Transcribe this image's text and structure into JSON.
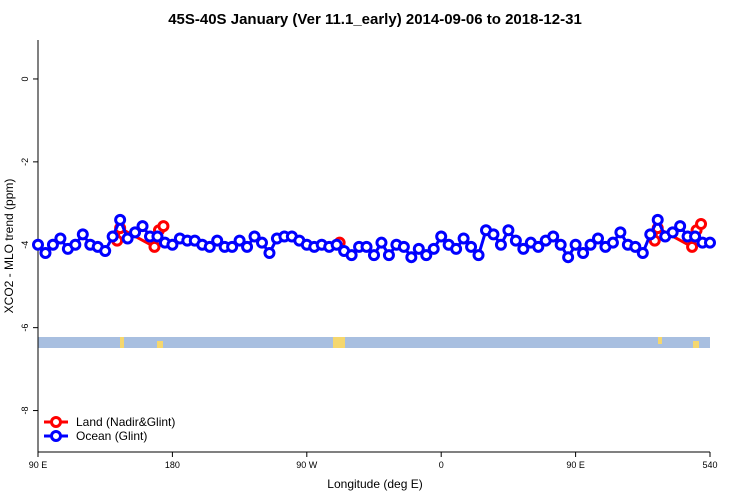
{
  "chart_data": {
    "type": "line",
    "title": "45S-40S January (Ver 11.1_early)   2014-09-06 to 2018-12-31",
    "x_label": "Longitude (deg E)",
    "y_label": "XCO2 - MLO trend (ppm)",
    "xlim": [
      90,
      540
    ],
    "xticks": [
      {
        "value": 90,
        "label": "90 E"
      },
      180,
      {
        "value": 270,
        "label": "90 W"
      },
      {
        "value": 360,
        "label": "0"
      },
      {
        "value": 450,
        "label": "90 E"
      },
      540
    ],
    "ylim": [
      -9.0,
      0.94
    ],
    "yticks": [
      0,
      -2,
      -4,
      -6,
      -8
    ],
    "legend": "bottom-left",
    "series": [
      {
        "name": "Land (Nadir&Glint)",
        "color": "#ff0000",
        "x": [
          143,
          145,
          168,
          171,
          174,
          null,
          292,
          null,
          503,
          505,
          528,
          531,
          534
        ],
        "values": [
          -3.9,
          -3.6,
          -4.05,
          -3.65,
          -3.55,
          null,
          -3.95,
          null,
          -3.9,
          -3.6,
          -4.05,
          -3.65,
          -3.5
        ]
      },
      {
        "name": "Ocean (Glint)",
        "color": "#0000ff",
        "x": [
          90,
          95,
          100,
          105,
          110,
          115,
          120,
          125,
          130,
          135,
          140,
          145,
          150,
          155,
          160,
          165,
          170,
          175,
          180,
          185,
          190,
          195,
          200,
          205,
          210,
          215,
          220,
          225,
          230,
          235,
          240,
          245,
          250,
          255,
          260,
          265,
          270,
          275,
          280,
          285,
          290,
          295,
          300,
          305,
          310,
          315,
          320,
          325,
          330,
          335,
          340,
          345,
          350,
          355,
          360,
          365,
          370,
          375,
          380,
          385,
          390,
          395,
          400,
          405,
          410,
          415,
          420,
          425,
          430,
          435,
          440,
          445,
          450,
          455,
          460,
          465,
          470,
          475,
          480,
          485,
          490,
          495,
          500,
          505,
          510,
          515,
          520,
          525,
          530,
          535,
          540
        ],
        "values": [
          -4.0,
          -4.2,
          -4.0,
          -3.85,
          -4.1,
          -4.0,
          -3.75,
          -4.0,
          -4.05,
          -4.15,
          -3.8,
          -3.4,
          -3.85,
          -3.7,
          -3.55,
          -3.8,
          -3.8,
          -3.95,
          -4.0,
          -3.85,
          -3.9,
          -3.9,
          -4.0,
          -4.05,
          -3.9,
          -4.05,
          -4.05,
          -3.9,
          -4.05,
          -3.8,
          -3.95,
          -4.2,
          -3.85,
          -3.8,
          -3.8,
          -3.9,
          -4.0,
          -4.05,
          -4.0,
          -4.05,
          -4.0,
          -4.15,
          -4.25,
          -4.05,
          -4.05,
          -4.25,
          -3.95,
          -4.25,
          -4.0,
          -4.05,
          -4.3,
          -4.1,
          -4.25,
          -4.1,
          -3.8,
          -4.0,
          -4.1,
          -3.85,
          -4.05,
          -4.25,
          -3.65,
          -3.75,
          -4.0,
          -3.65,
          -3.9,
          -4.1,
          -3.95,
          -4.05,
          -3.9,
          -3.8,
          -4.0,
          -4.3,
          -4.0,
          -4.2,
          -4.0,
          -3.85,
          -4.05,
          -3.95,
          -3.7,
          -4.0,
          -4.05,
          -4.2,
          -3.75,
          -3.4,
          -3.8,
          -3.7,
          -3.55,
          -3.8,
          -3.8,
          -3.95,
          -3.95
        ]
      }
    ]
  }
}
